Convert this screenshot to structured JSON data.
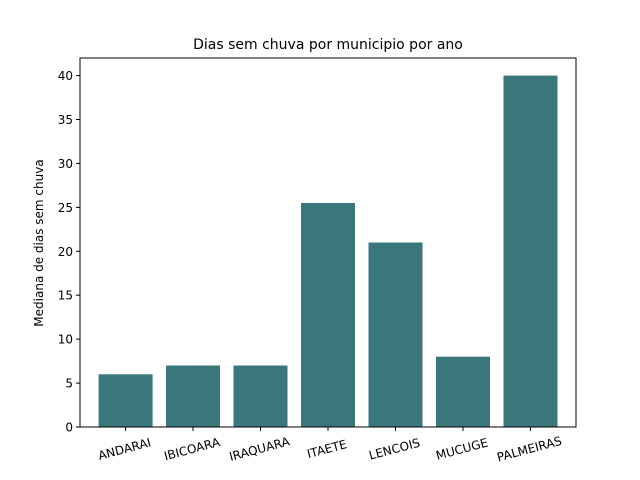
{
  "chart_data": {
    "type": "bar",
    "title": "Dias sem chuva por municipio por ano",
    "xlabel": "",
    "ylabel": "Mediana de dias sem chuva",
    "categories": [
      "ANDARAI",
      "IBICOARA",
      "IRAQUARA",
      "ITAETE",
      "LENCOIS",
      "MUCUGE",
      "PALMEIRAS"
    ],
    "values": [
      6,
      7,
      7,
      25.5,
      21,
      8,
      40
    ],
    "ylim": [
      0,
      42
    ],
    "yticks": [
      0,
      5,
      10,
      15,
      20,
      25,
      30,
      35,
      40
    ],
    "grid": false,
    "bar_color": "#3a777b",
    "x_tick_rotation_deg": 15
  }
}
